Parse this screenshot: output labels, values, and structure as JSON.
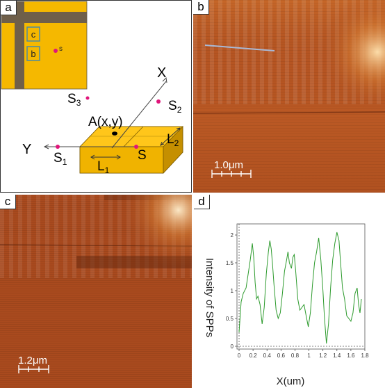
{
  "panels": {
    "a": {
      "label": "a",
      "inset_labels": {
        "c": "c",
        "b": "b",
        "s": "s"
      },
      "axis_x": "X",
      "axis_y": "Y",
      "point_a": "A(x,y)",
      "s_label": "S",
      "s1": {
        "main": "S",
        "sub": "1"
      },
      "s2": {
        "main": "S",
        "sub": "2"
      },
      "s3": {
        "main": "S",
        "sub": "3"
      },
      "l1": {
        "main": "L",
        "sub": "1"
      },
      "l2": {
        "main": "L",
        "sub": "2"
      }
    },
    "b": {
      "label": "b",
      "scale": "1.0μm"
    },
    "c": {
      "label": "c",
      "scale": "1.2μm"
    },
    "d": {
      "label": "d"
    }
  },
  "colors": {
    "gold": "#f5b800",
    "gold_dark": "#c58f00",
    "gold_top": "#ffc61a",
    "metal_stripe": "#6f5f4a",
    "marker": "#e0157a",
    "afm_base": "#a84a1c",
    "afm_light": "#e08a3a",
    "curve": "#2c9a2c"
  },
  "chart_data": {
    "type": "line",
    "title": "",
    "xlabel": "X(um)",
    "ylabel": "Intensity of SPPs",
    "xlim": [
      -0.03,
      1.8
    ],
    "ylim": [
      -0.05,
      2.2
    ],
    "xticks": [
      "0",
      "0.2",
      "0.4",
      "0.6",
      "0.8",
      "1",
      "1.2",
      "1.4",
      "1.6",
      "1.8"
    ],
    "yticks": [
      "0",
      "0.5",
      "1",
      "1.5",
      "2"
    ],
    "series": [
      {
        "x": [
          0.0,
          0.03,
          0.06,
          0.1,
          0.13,
          0.16,
          0.19,
          0.21,
          0.23,
          0.25,
          0.27,
          0.3,
          0.33,
          0.36,
          0.39,
          0.42,
          0.44,
          0.46,
          0.48,
          0.5,
          0.53,
          0.56,
          0.59,
          0.62,
          0.65,
          0.68,
          0.7,
          0.72,
          0.75,
          0.77,
          0.79,
          0.81,
          0.84,
          0.87,
          0.9,
          0.93,
          0.96,
          0.99,
          1.02,
          1.05,
          1.08,
          1.11,
          1.14,
          1.17,
          1.2,
          1.22,
          1.25,
          1.28,
          1.31,
          1.34,
          1.37,
          1.4,
          1.43,
          1.45,
          1.48,
          1.51,
          1.54,
          1.57,
          1.6,
          1.63,
          1.66,
          1.69,
          1.71,
          1.73,
          1.75
        ],
        "y": [
          0.25,
          0.8,
          0.95,
          1.05,
          1.3,
          1.55,
          1.85,
          1.6,
          1.15,
          0.85,
          0.9,
          0.75,
          0.4,
          0.7,
          1.3,
          1.7,
          1.9,
          1.75,
          1.45,
          1.1,
          0.65,
          0.5,
          0.6,
          0.95,
          1.35,
          1.55,
          1.7,
          1.5,
          1.4,
          1.6,
          1.65,
          1.35,
          0.85,
          0.65,
          0.7,
          0.75,
          0.55,
          0.35,
          0.6,
          1.1,
          1.5,
          1.7,
          1.95,
          1.55,
          1.0,
          0.55,
          0.05,
          0.4,
          1.05,
          1.55,
          1.85,
          2.05,
          1.9,
          1.55,
          1.05,
          0.85,
          0.55,
          0.5,
          0.45,
          0.6,
          0.95,
          1.05,
          0.75,
          0.6,
          0.85
        ]
      }
    ]
  }
}
